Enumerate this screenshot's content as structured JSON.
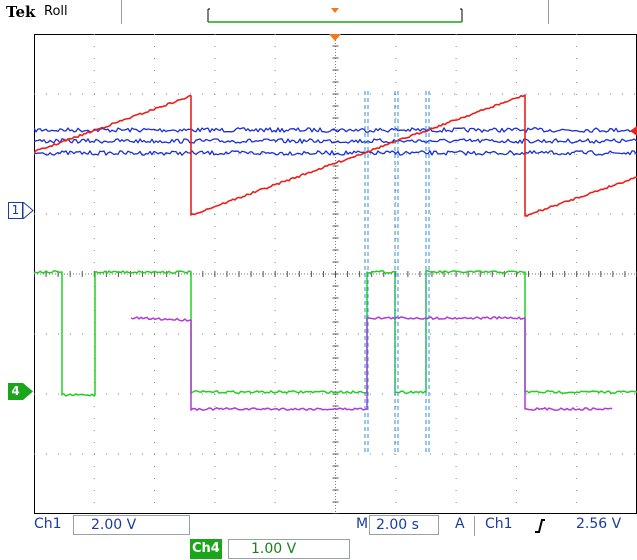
{
  "header": {
    "brand": "Tek",
    "acquisition_mode": "Roll"
  },
  "markers": {
    "ch1": "1",
    "ch4": "4"
  },
  "footer": {
    "ch1_label": "Ch1",
    "ch1_scale": "2.00 V",
    "ch4_label": "Ch4",
    "ch4_scale": "1.00 V",
    "timebase_label": "M",
    "timebase_value": "2.00 s",
    "trigger_mode": "A",
    "trigger_source": "Ch1",
    "trigger_slope_icon": "rising-edge-icon",
    "trigger_level": "2.56 V"
  },
  "colors": {
    "ch1": "#e8221a",
    "ch2": "#1a2fd6",
    "ch3": "#b23ad8",
    "ch4": "#22d022",
    "cursor": "#2f8fd8",
    "trigger_marker": "#f07a1a",
    "label_text": "#1a3c9e",
    "record_bar": "#1aa51a"
  }
}
